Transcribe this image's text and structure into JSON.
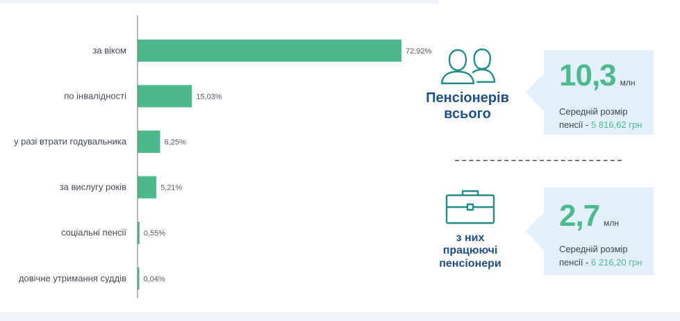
{
  "chart_data": {
    "type": "bar",
    "orientation": "horizontal",
    "categories": [
      "за віком",
      "по інвалідності",
      "у разі втрати годувальника",
      "за вислугу років",
      "соціальні пенсії",
      "довічне утримання суддів"
    ],
    "values": [
      72.92,
      15.03,
      6.25,
      5.21,
      0.55,
      0.04
    ],
    "value_labels": [
      "72,92%",
      "15,03%",
      "6,25%",
      "5,21%",
      "0,55%",
      "0,04%"
    ],
    "bar_color": "#4cba8d",
    "xlim": [
      0,
      80
    ],
    "grid": false
  },
  "stats": [
    {
      "caption_lines": [
        "Пенсіонерів",
        "всього"
      ],
      "icon": "people-icon",
      "number": "10,3",
      "unit": "млн",
      "desc_line1": "Середній розмір",
      "desc_prefix": "пенсії -",
      "desc_amount": "5 816,62 грн"
    },
    {
      "caption_lines": [
        "з них",
        "працюючі",
        "пенсіонери"
      ],
      "icon": "briefcase-icon",
      "number": "2,7",
      "unit": "млн",
      "desc_line1": "Середній розмір",
      "desc_prefix": "пенсії -",
      "desc_amount": "6 216,20 грн"
    }
  ],
  "colors": {
    "accent_green": "#4cba8d",
    "caption_blue": "#1f4f86",
    "box_bg": "#e3f0fb",
    "icon_teal": "#1f8c86"
  }
}
